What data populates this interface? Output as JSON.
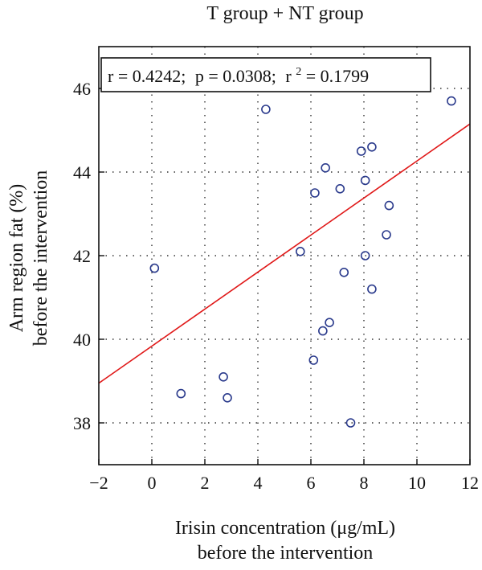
{
  "chart_data": {
    "type": "scatter",
    "title": "T group + NT group",
    "xlabel": [
      "Irisin concentration (μg/mL)",
      "before the intervention"
    ],
    "ylabel": [
      "Arm region fat (%)",
      "before the intervention"
    ],
    "xlim": [
      -2,
      12
    ],
    "ylim": [
      37,
      47
    ],
    "xticks": [
      -2,
      0,
      2,
      4,
      6,
      8,
      10,
      12
    ],
    "yticks": [
      38,
      40,
      42,
      44,
      46
    ],
    "grid": true,
    "annotation": {
      "r_text": "r = 0.4242;",
      "p_text": "p = 0.0308;",
      "r2_prefix": "r",
      "r2_exp": "2",
      "r2_value": " = 0.1799"
    },
    "points": [
      {
        "x": 0.1,
        "y": 41.7
      },
      {
        "x": 1.1,
        "y": 38.7
      },
      {
        "x": 2.7,
        "y": 39.1
      },
      {
        "x": 2.85,
        "y": 38.6
      },
      {
        "x": 4.3,
        "y": 45.5
      },
      {
        "x": 5.6,
        "y": 42.1
      },
      {
        "x": 6.1,
        "y": 39.5
      },
      {
        "x": 6.15,
        "y": 43.5
      },
      {
        "x": 6.45,
        "y": 40.2
      },
      {
        "x": 6.55,
        "y": 44.1
      },
      {
        "x": 6.7,
        "y": 40.4
      },
      {
        "x": 7.1,
        "y": 43.6
      },
      {
        "x": 7.25,
        "y": 41.6
      },
      {
        "x": 7.5,
        "y": 38.0
      },
      {
        "x": 7.9,
        "y": 44.5
      },
      {
        "x": 8.05,
        "y": 43.8
      },
      {
        "x": 8.05,
        "y": 42.0
      },
      {
        "x": 8.3,
        "y": 44.6
      },
      {
        "x": 8.3,
        "y": 41.2
      },
      {
        "x": 8.85,
        "y": 42.5
      },
      {
        "x": 8.95,
        "y": 43.2
      },
      {
        "x": 11.3,
        "y": 45.7
      }
    ],
    "fit_line": {
      "x0": -2,
      "y0": 38.95,
      "x1": 12,
      "y1": 45.15
    }
  }
}
